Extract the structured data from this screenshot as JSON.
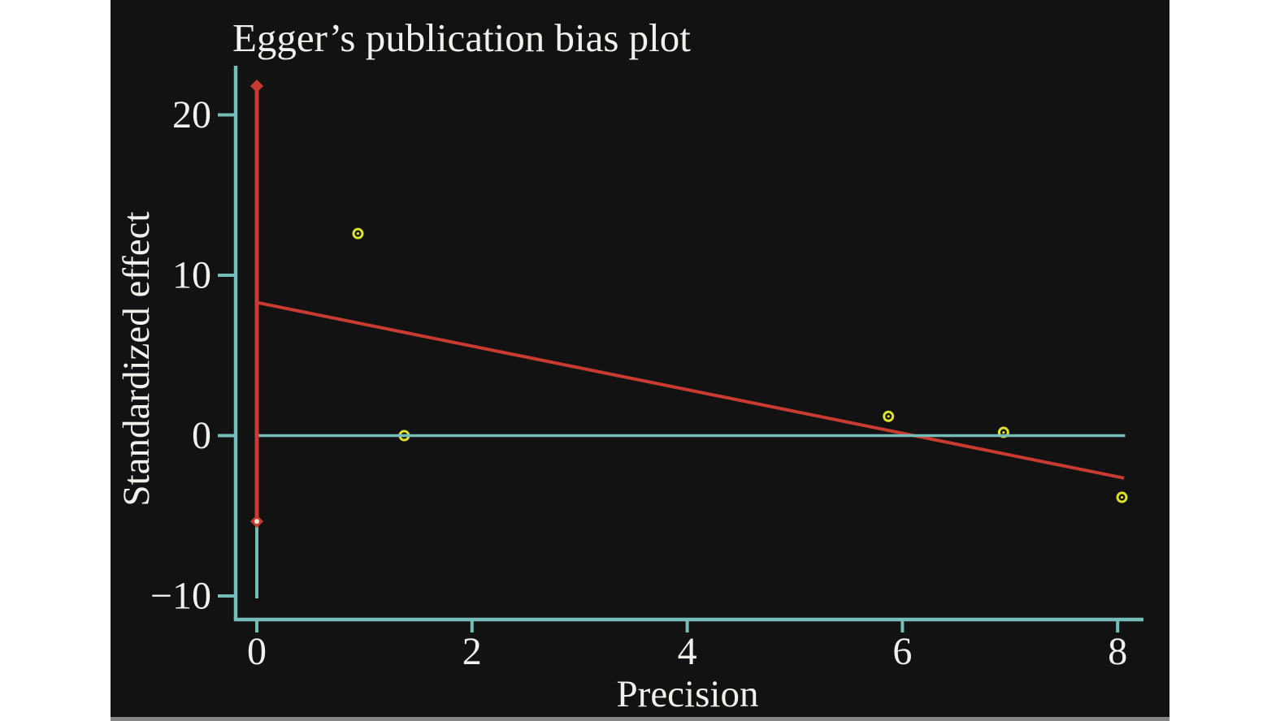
{
  "chart_data": {
    "type": "scatter",
    "title": "Egger’s publication bias plot",
    "xlabel": "Precision",
    "ylabel": "Standardized effect",
    "x_ticks": [
      "0",
      "2",
      "4",
      "6",
      "8"
    ],
    "x_tick_values": [
      0,
      2,
      4,
      6,
      8
    ],
    "y_ticks": [
      "20",
      "10",
      "0",
      "−10"
    ],
    "y_tick_values": [
      20,
      10,
      0,
      -10
    ],
    "x_range": [
      -0.2,
      8.24
    ],
    "y_range": [
      -11.5,
      23.1
    ],
    "grid": false,
    "legend": null,
    "series": [
      {
        "name": "study-points",
        "kind": "scatter",
        "marker": "open-circle",
        "color": "#dce22b",
        "points": [
          [
            0.94,
            12.6
          ],
          [
            1.37,
            0.0
          ],
          [
            5.87,
            1.2
          ],
          [
            6.94,
            0.2
          ],
          [
            8.04,
            -3.85
          ]
        ]
      },
      {
        "name": "egger-regression-line",
        "kind": "line",
        "color": "#c93a31",
        "width": 4,
        "points": [
          [
            0,
            8.3
          ],
          [
            8.06,
            -2.65
          ]
        ]
      },
      {
        "name": "zero-reference-line",
        "kind": "line",
        "color": "#74bdb9",
        "width": 3.5,
        "points": [
          [
            0,
            0
          ],
          [
            8.07,
            0
          ]
        ]
      },
      {
        "name": "vertical-guide-line",
        "kind": "line",
        "color": "#74bdb9",
        "width": 4,
        "points": [
          [
            0,
            -10.15
          ],
          [
            0,
            -5.35
          ]
        ]
      },
      {
        "name": "intercept-confidence-interval",
        "kind": "vline-ci",
        "color": "#c93a31",
        "width": 5,
        "marker": "diamond",
        "x": 0,
        "lower": -5.35,
        "upper": 21.8
      },
      {
        "name": "ci-lower-inner-dot",
        "kind": "scatter",
        "marker": "dot",
        "color": "#efe7cd",
        "points": [
          [
            0,
            -5.35
          ]
        ]
      }
    ],
    "colors": {
      "background": "#121212",
      "page_margin": "#ffffff",
      "axis": "#74bdb9",
      "text": "#f2f0ec",
      "bottom_strip": "#848484"
    }
  }
}
